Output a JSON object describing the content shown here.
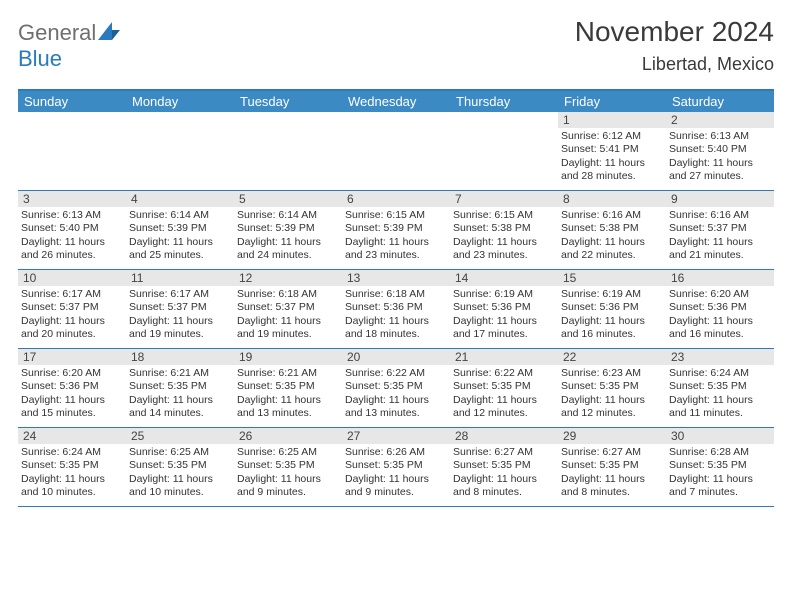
{
  "logo": {
    "gen": "General",
    "blue": "Blue"
  },
  "title": "November 2024",
  "location": "Libertad, Mexico",
  "colors": {
    "accent": "#2a7bbd",
    "header_bg": "#3b8ac4",
    "header_text": "#ffffff",
    "daynum_bg": "#e7e7e7",
    "text": "#333333",
    "background": "#ffffff"
  },
  "day_names": [
    "Sunday",
    "Monday",
    "Tuesday",
    "Wednesday",
    "Thursday",
    "Friday",
    "Saturday"
  ],
  "weeks": [
    [
      {
        "empty": true
      },
      {
        "empty": true
      },
      {
        "empty": true
      },
      {
        "empty": true
      },
      {
        "empty": true
      },
      {
        "n": "1",
        "sr": "6:12 AM",
        "ss": "5:41 PM",
        "dl": "11 hours and 28 minutes."
      },
      {
        "n": "2",
        "sr": "6:13 AM",
        "ss": "5:40 PM",
        "dl": "11 hours and 27 minutes."
      }
    ],
    [
      {
        "n": "3",
        "sr": "6:13 AM",
        "ss": "5:40 PM",
        "dl": "11 hours and 26 minutes."
      },
      {
        "n": "4",
        "sr": "6:14 AM",
        "ss": "5:39 PM",
        "dl": "11 hours and 25 minutes."
      },
      {
        "n": "5",
        "sr": "6:14 AM",
        "ss": "5:39 PM",
        "dl": "11 hours and 24 minutes."
      },
      {
        "n": "6",
        "sr": "6:15 AM",
        "ss": "5:39 PM",
        "dl": "11 hours and 23 minutes."
      },
      {
        "n": "7",
        "sr": "6:15 AM",
        "ss": "5:38 PM",
        "dl": "11 hours and 23 minutes."
      },
      {
        "n": "8",
        "sr": "6:16 AM",
        "ss": "5:38 PM",
        "dl": "11 hours and 22 minutes."
      },
      {
        "n": "9",
        "sr": "6:16 AM",
        "ss": "5:37 PM",
        "dl": "11 hours and 21 minutes."
      }
    ],
    [
      {
        "n": "10",
        "sr": "6:17 AM",
        "ss": "5:37 PM",
        "dl": "11 hours and 20 minutes."
      },
      {
        "n": "11",
        "sr": "6:17 AM",
        "ss": "5:37 PM",
        "dl": "11 hours and 19 minutes."
      },
      {
        "n": "12",
        "sr": "6:18 AM",
        "ss": "5:37 PM",
        "dl": "11 hours and 19 minutes."
      },
      {
        "n": "13",
        "sr": "6:18 AM",
        "ss": "5:36 PM",
        "dl": "11 hours and 18 minutes."
      },
      {
        "n": "14",
        "sr": "6:19 AM",
        "ss": "5:36 PM",
        "dl": "11 hours and 17 minutes."
      },
      {
        "n": "15",
        "sr": "6:19 AM",
        "ss": "5:36 PM",
        "dl": "11 hours and 16 minutes."
      },
      {
        "n": "16",
        "sr": "6:20 AM",
        "ss": "5:36 PM",
        "dl": "11 hours and 16 minutes."
      }
    ],
    [
      {
        "n": "17",
        "sr": "6:20 AM",
        "ss": "5:36 PM",
        "dl": "11 hours and 15 minutes."
      },
      {
        "n": "18",
        "sr": "6:21 AM",
        "ss": "5:35 PM",
        "dl": "11 hours and 14 minutes."
      },
      {
        "n": "19",
        "sr": "6:21 AM",
        "ss": "5:35 PM",
        "dl": "11 hours and 13 minutes."
      },
      {
        "n": "20",
        "sr": "6:22 AM",
        "ss": "5:35 PM",
        "dl": "11 hours and 13 minutes."
      },
      {
        "n": "21",
        "sr": "6:22 AM",
        "ss": "5:35 PM",
        "dl": "11 hours and 12 minutes."
      },
      {
        "n": "22",
        "sr": "6:23 AM",
        "ss": "5:35 PM",
        "dl": "11 hours and 12 minutes."
      },
      {
        "n": "23",
        "sr": "6:24 AM",
        "ss": "5:35 PM",
        "dl": "11 hours and 11 minutes."
      }
    ],
    [
      {
        "n": "24",
        "sr": "6:24 AM",
        "ss": "5:35 PM",
        "dl": "11 hours and 10 minutes."
      },
      {
        "n": "25",
        "sr": "6:25 AM",
        "ss": "5:35 PM",
        "dl": "11 hours and 10 minutes."
      },
      {
        "n": "26",
        "sr": "6:25 AM",
        "ss": "5:35 PM",
        "dl": "11 hours and 9 minutes."
      },
      {
        "n": "27",
        "sr": "6:26 AM",
        "ss": "5:35 PM",
        "dl": "11 hours and 9 minutes."
      },
      {
        "n": "28",
        "sr": "6:27 AM",
        "ss": "5:35 PM",
        "dl": "11 hours and 8 minutes."
      },
      {
        "n": "29",
        "sr": "6:27 AM",
        "ss": "5:35 PM",
        "dl": "11 hours and 8 minutes."
      },
      {
        "n": "30",
        "sr": "6:28 AM",
        "ss": "5:35 PM",
        "dl": "11 hours and 7 minutes."
      }
    ]
  ],
  "labels": {
    "sunrise": "Sunrise: ",
    "sunset": "Sunset: ",
    "daylight": "Daylight: "
  }
}
